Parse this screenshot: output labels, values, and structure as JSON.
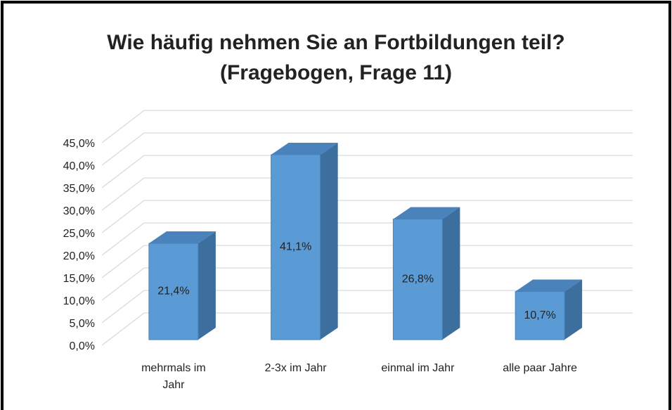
{
  "chart_data": {
    "type": "bar3d",
    "title": "Wie häufig nehmen Sie an Fortbildungen teil?",
    "subtitle": "(Fragebogen, Frage 11)",
    "categories": [
      "mehrmals im Jahr",
      "2-3x im Jahr",
      "einmal im Jahr",
      "alle paar Jahre"
    ],
    "values": [
      21.4,
      41.1,
      26.8,
      10.7
    ],
    "value_labels": [
      "21,4%",
      "41,1%",
      "26,8%",
      "10,7%"
    ],
    "color": "#5b9bd5",
    "ylim": [
      0,
      45
    ],
    "yticks": [
      {
        "value": 0,
        "label": "0,0%"
      },
      {
        "value": 5,
        "label": "5,0%"
      },
      {
        "value": 10,
        "label": "10,0%"
      },
      {
        "value": 15,
        "label": "15,0%"
      },
      {
        "value": 20,
        "label": "20,0%"
      },
      {
        "value": 25,
        "label": "25,0%"
      },
      {
        "value": 30,
        "label": "30,0%"
      },
      {
        "value": 35,
        "label": "35,0%"
      },
      {
        "value": 40,
        "label": "40,0%"
      },
      {
        "value": 45,
        "label": "45,0%"
      }
    ],
    "grid": true
  }
}
